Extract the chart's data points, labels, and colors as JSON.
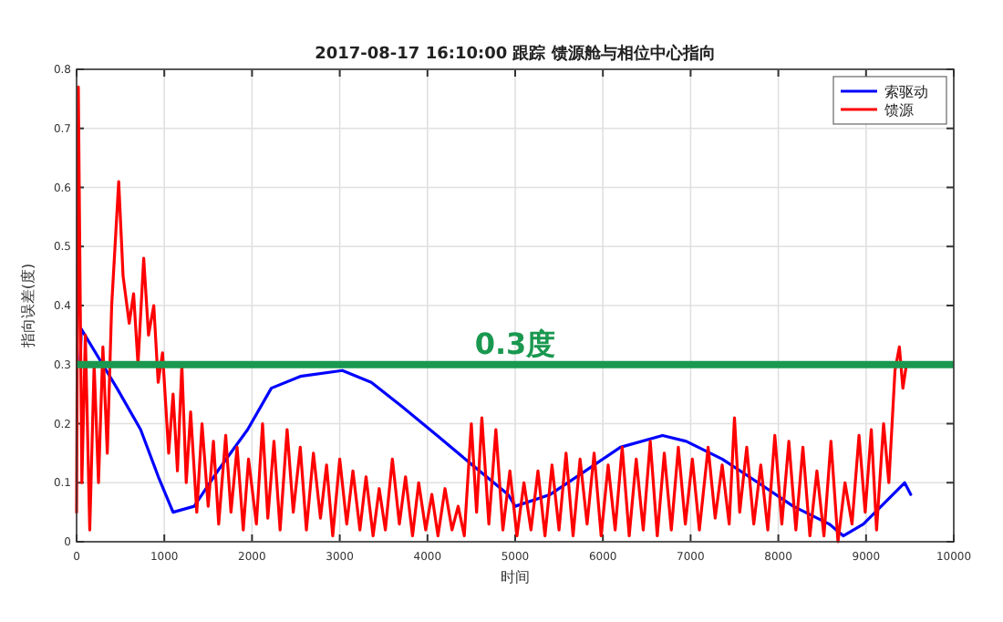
{
  "chart_data": {
    "type": "line",
    "title": "2017-08-17 16:10:00 跟踪 馈源舱与相位中心指向",
    "xlabel": "时间",
    "ylabel": "指向误差(度)",
    "xlim": [
      0,
      10000
    ],
    "ylim": [
      0,
      0.8
    ],
    "xticks": [
      0,
      1000,
      2000,
      3000,
      4000,
      5000,
      6000,
      7000,
      8000,
      9000,
      10000
    ],
    "yticks": [
      0,
      0.1,
      0.2,
      0.3,
      0.4,
      0.5,
      0.6,
      0.7,
      0.8
    ],
    "grid": true,
    "legend": "top right",
    "ref_lines": [
      {
        "axis": "y",
        "value": 0.3,
        "label": "0.3度",
        "color": "#1a9850"
      }
    ],
    "series": [
      {
        "name": "索驱动",
        "color": "#0000ff",
        "x": [
          40,
          54,
          257,
          460,
          730,
          932,
          1100,
          1340,
          1610,
          1950,
          2220,
          2550,
          3030,
          3360,
          3700,
          4110,
          4510,
          4920,
          5000,
          5400,
          5800,
          6200,
          6680,
          6950,
          7360,
          7770,
          8170,
          8580,
          8740,
          8970,
          9240,
          9440,
          9510
        ],
        "values": [
          0.3,
          0.36,
          0.31,
          0.26,
          0.19,
          0.11,
          0.05,
          0.06,
          0.12,
          0.19,
          0.26,
          0.28,
          0.29,
          0.27,
          0.23,
          0.18,
          0.13,
          0.08,
          0.06,
          0.08,
          0.12,
          0.16,
          0.18,
          0.17,
          0.14,
          0.1,
          0.06,
          0.03,
          0.01,
          0.03,
          0.07,
          0.1,
          0.08
        ]
      },
      {
        "name": "馈源",
        "color": "#ff0000",
        "x": [
          0,
          20,
          60,
          100,
          150,
          200,
          250,
          300,
          350,
          400,
          480,
          530,
          600,
          650,
          700,
          765,
          820,
          880,
          930,
          980,
          1050,
          1100,
          1150,
          1200,
          1250,
          1300,
          1370,
          1430,
          1500,
          1560,
          1620,
          1700,
          1760,
          1830,
          1900,
          1960,
          2050,
          2120,
          2180,
          2250,
          2320,
          2400,
          2470,
          2550,
          2620,
          2700,
          2780,
          2850,
          2920,
          3000,
          3080,
          3150,
          3230,
          3300,
          3380,
          3450,
          3520,
          3600,
          3680,
          3750,
          3830,
          3900,
          3980,
          4050,
          4120,
          4200,
          4280,
          4350,
          4420,
          4500,
          4560,
          4620,
          4700,
          4780,
          4860,
          4940,
          5020,
          5100,
          5180,
          5260,
          5340,
          5420,
          5500,
          5580,
          5660,
          5740,
          5820,
          5900,
          5980,
          6060,
          6140,
          6220,
          6300,
          6380,
          6460,
          6540,
          6620,
          6700,
          6780,
          6860,
          6940,
          7020,
          7100,
          7200,
          7280,
          7360,
          7440,
          7500,
          7560,
          7640,
          7720,
          7800,
          7880,
          7960,
          8040,
          8120,
          8200,
          8280,
          8360,
          8440,
          8520,
          8600,
          8680,
          8760,
          8840,
          8920,
          8990,
          9060,
          9120,
          9200,
          9260,
          9330,
          9380,
          9420,
          9460
        ],
        "values": [
          0.05,
          0.77,
          0.1,
          0.35,
          0.02,
          0.3,
          0.1,
          0.33,
          0.15,
          0.4,
          0.61,
          0.45,
          0.37,
          0.42,
          0.3,
          0.48,
          0.35,
          0.4,
          0.27,
          0.32,
          0.15,
          0.25,
          0.12,
          0.3,
          0.1,
          0.22,
          0.05,
          0.2,
          0.06,
          0.17,
          0.03,
          0.18,
          0.05,
          0.16,
          0.02,
          0.14,
          0.03,
          0.2,
          0.04,
          0.17,
          0.02,
          0.19,
          0.05,
          0.16,
          0.02,
          0.15,
          0.04,
          0.13,
          0.01,
          0.14,
          0.03,
          0.12,
          0.02,
          0.11,
          0.01,
          0.09,
          0.02,
          0.14,
          0.03,
          0.11,
          0.01,
          0.1,
          0.02,
          0.08,
          0.01,
          0.09,
          0.02,
          0.06,
          0.01,
          0.2,
          0.05,
          0.21,
          0.03,
          0.19,
          0.02,
          0.12,
          0.01,
          0.1,
          0.02,
          0.12,
          0.01,
          0.13,
          0.02,
          0.15,
          0.01,
          0.14,
          0.03,
          0.15,
          0.01,
          0.13,
          0.02,
          0.16,
          0.01,
          0.14,
          0.02,
          0.17,
          0.01,
          0.15,
          0.02,
          0.16,
          0.03,
          0.14,
          0.02,
          0.16,
          0.04,
          0.13,
          0.03,
          0.21,
          0.05,
          0.16,
          0.03,
          0.13,
          0.02,
          0.18,
          0.03,
          0.17,
          0.02,
          0.16,
          0.01,
          0.12,
          0.01,
          0.17,
          0.0,
          0.1,
          0.03,
          0.18,
          0.05,
          0.19,
          0.02,
          0.2,
          0.1,
          0.29,
          0.33,
          0.26,
          0.3
        ]
      }
    ]
  }
}
